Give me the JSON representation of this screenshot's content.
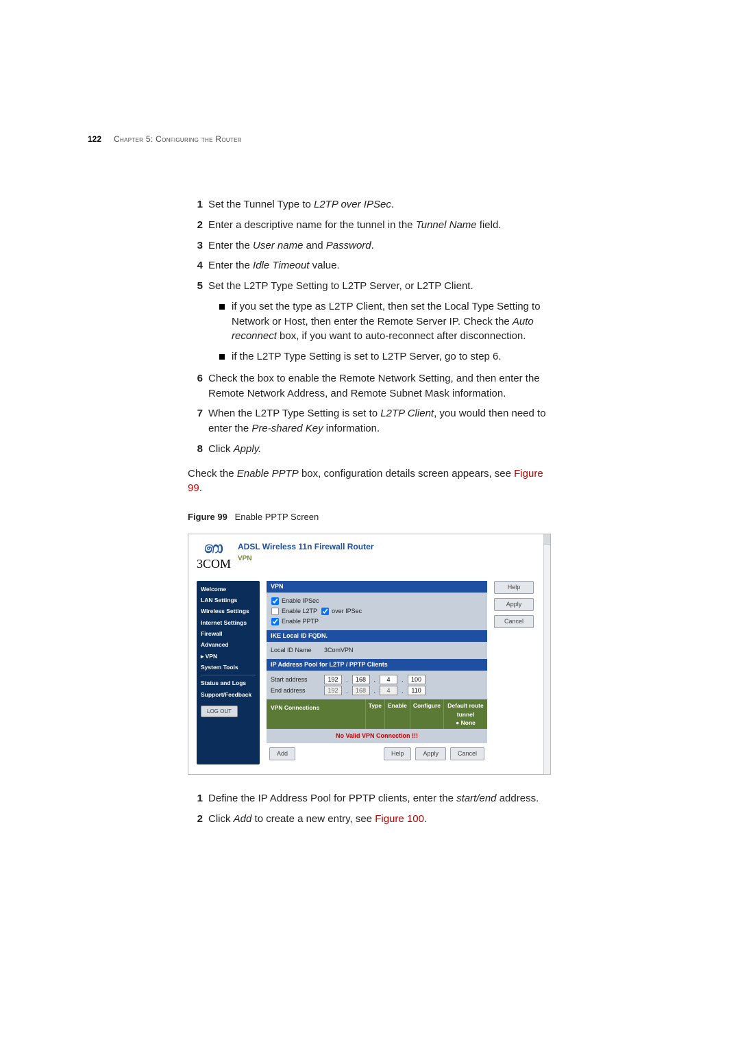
{
  "page": {
    "number": "122",
    "chapter": "Chapter 5: Configuring the Router"
  },
  "list1": {
    "i1": {
      "num": "1",
      "text_a": "Set the Tunnel Type to ",
      "em": "L2TP over IPSec",
      "text_b": "."
    },
    "i2": {
      "num": "2",
      "text_a": "Enter a descriptive name for the tunnel in the ",
      "em": "Tunnel Name",
      "text_b": " field."
    },
    "i3": {
      "num": "3",
      "text_a": "Enter the ",
      "em1": "User name",
      "mid": " and ",
      "em2": "Password",
      "text_b": "."
    },
    "i4": {
      "num": "4",
      "text_a": "Enter the ",
      "em": "Idle Timeout",
      "text_b": " value."
    },
    "i5": {
      "num": "5",
      "text": "Set the L2TP Type Setting to L2TP Server, or L2TP Client."
    },
    "i5_b1": "if you set the type as L2TP Client, then set the Local Type Setting to Network or Host, then enter the Remote Server IP. Check the ",
    "i5_b1_em": "Auto reconnect",
    "i5_b1_tail": " box, if you want to auto-reconnect after disconnection.",
    "i5_b2": "if the L2TP Type Setting is set to L2TP Server, go to step 6.",
    "i6": {
      "num": "6",
      "text": "Check the box to enable the Remote Network Setting, and then enter the Remote Network Address, and Remote Subnet Mask information."
    },
    "i7": {
      "num": "7",
      "text_a": "When the L2TP Type Setting is set to ",
      "em": "L2TP Client",
      "text_b": ", you would then need to enter the ",
      "em2": "Pre-shared Key",
      "text_c": " information."
    },
    "i8": {
      "num": "8",
      "text_a": "Click ",
      "em": "Apply."
    }
  },
  "para1_a": "Check the ",
  "para1_em": "Enable PPTP",
  "para1_b": " box, configuration details screen appears, see ",
  "para1_link": "Figure 99",
  "para1_c": ".",
  "figcap_label": "Figure 99",
  "figcap_text": "Enable PPTP Screen",
  "screenshot": {
    "brand": "3COM",
    "title": "ADSL Wireless 11n Firewall Router",
    "section": "VPN",
    "nav": {
      "n1": "Welcome",
      "n2": "LAN Settings",
      "n3": "Wireless Settings",
      "n4": "Internet Settings",
      "n5": "Firewall",
      "n6": "Advanced",
      "n7": "VPN",
      "n8": "System Tools",
      "n9": "Status and Logs",
      "n10": "Support/Feedback",
      "logout": "LOG OUT"
    },
    "vpn_hdr": "VPN",
    "enable_ipsec": "Enable IPSec",
    "enable_l2tp": "Enable L2TP",
    "over_ipsec": "over IPSec",
    "enable_pptp": "Enable PPTP",
    "ike_hdr": "IKE Local ID FQDN.",
    "local_id_label": "Local ID Name",
    "local_id_value": "3ComVPN",
    "pool_hdr": "IP Address Pool for L2TP / PPTP Clients",
    "start_label": "Start address",
    "start": {
      "a": "192",
      "b": "168",
      "c": "4",
      "d": "100"
    },
    "end_label": "End address",
    "end": {
      "a": "192",
      "b": "168",
      "c": "4",
      "d": "110"
    },
    "conn_hdr": "VPN Connections",
    "col_type": "Type",
    "col_enable": "Enable",
    "col_conf": "Configure",
    "col_route": "Default route tunnel",
    "col_none": "● None",
    "novpn": "No Valid VPN Connection !!!",
    "btn_add": "Add",
    "btn_help": "Help",
    "btn_apply": "Apply",
    "btn_cancel": "Cancel"
  },
  "list2": {
    "i1": {
      "num": "1",
      "text_a": "Define the IP Address Pool for PPTP clients, enter the ",
      "em": "start/end",
      "text_b": " address."
    },
    "i2": {
      "num": "2",
      "text_a": "Click ",
      "em": "Add",
      "text_b": " to create a new entry, see ",
      "link": "Figure 100",
      "text_c": "."
    }
  }
}
